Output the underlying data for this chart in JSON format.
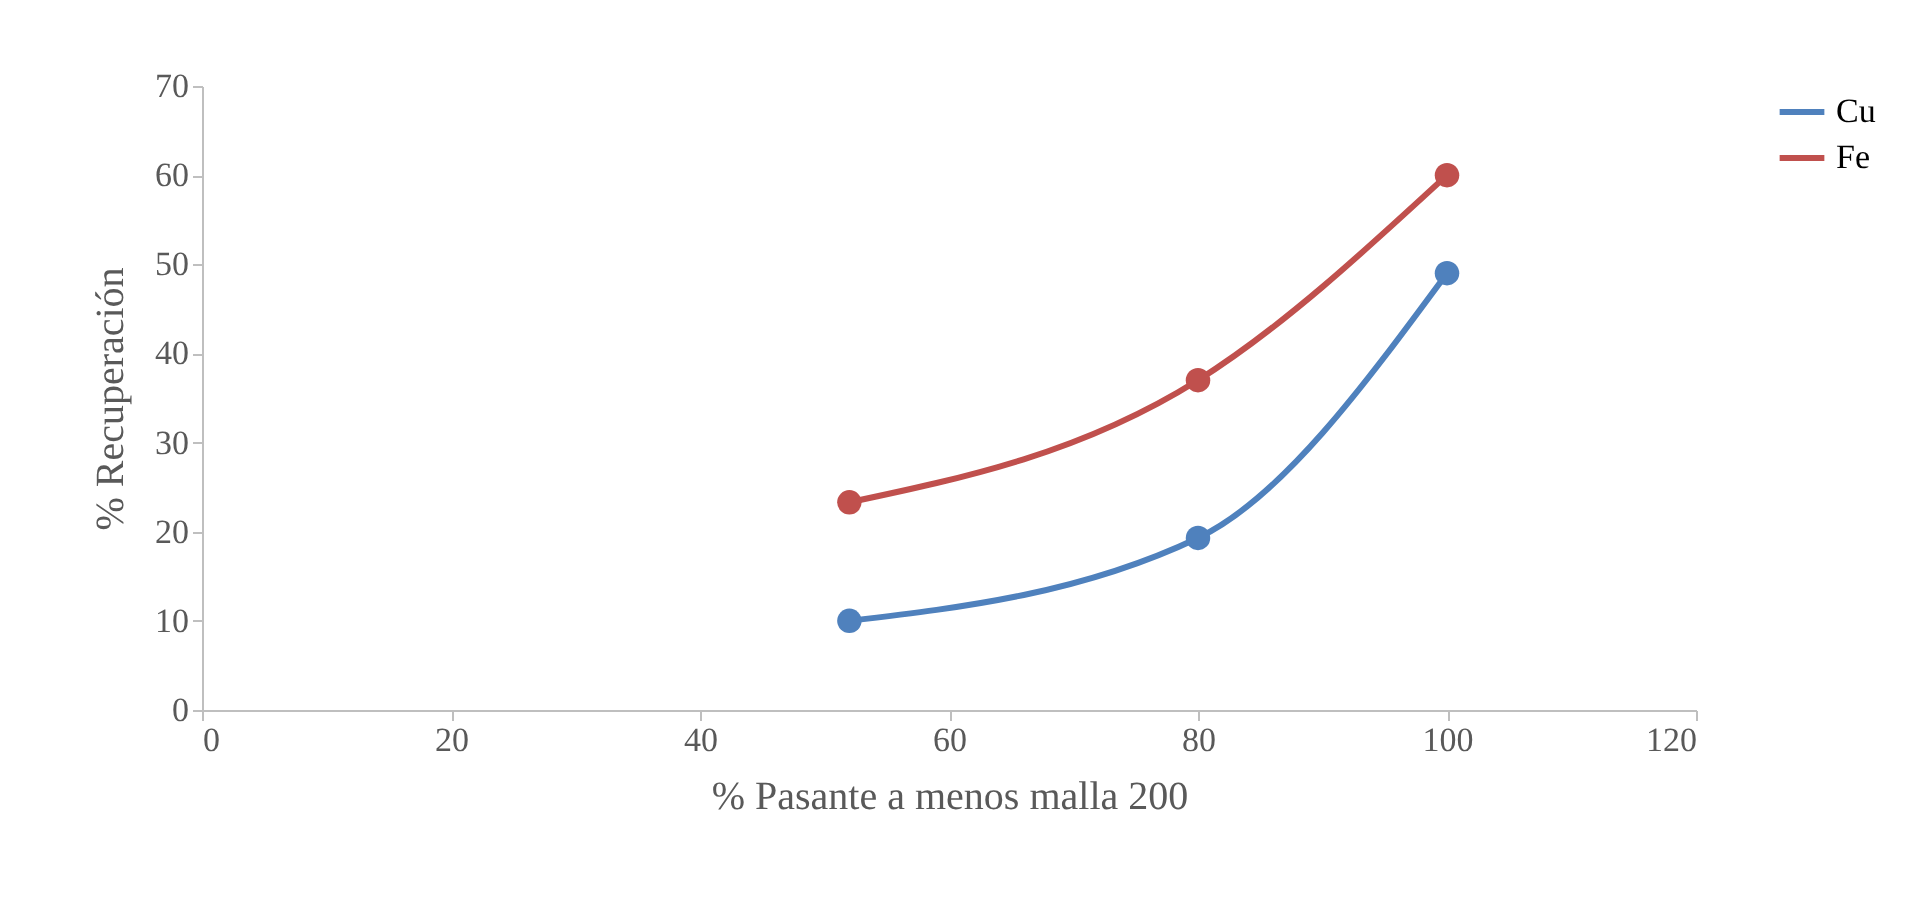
{
  "chart_data": {
    "type": "line",
    "xlabel": "% Pasante a menos malla 200",
    "ylabel": "% Recuperación",
    "x": [
      52,
      80,
      100
    ],
    "series": [
      {
        "name": "Cu",
        "color": "#4f81bd",
        "values": [
          10,
          19.3,
          49
        ]
      },
      {
        "name": "Fe",
        "color": "#c0504d",
        "values": [
          23.3,
          37,
          60
        ]
      }
    ],
    "xlim": [
      0,
      120
    ],
    "xticks": [
      0,
      20,
      40,
      60,
      80,
      100,
      120
    ],
    "ylim": [
      0,
      70
    ],
    "yticks": [
      0,
      10,
      20,
      30,
      40,
      50,
      60,
      70
    ],
    "grid": false,
    "legend": "right",
    "marker": "circle",
    "line_style": "solid"
  }
}
